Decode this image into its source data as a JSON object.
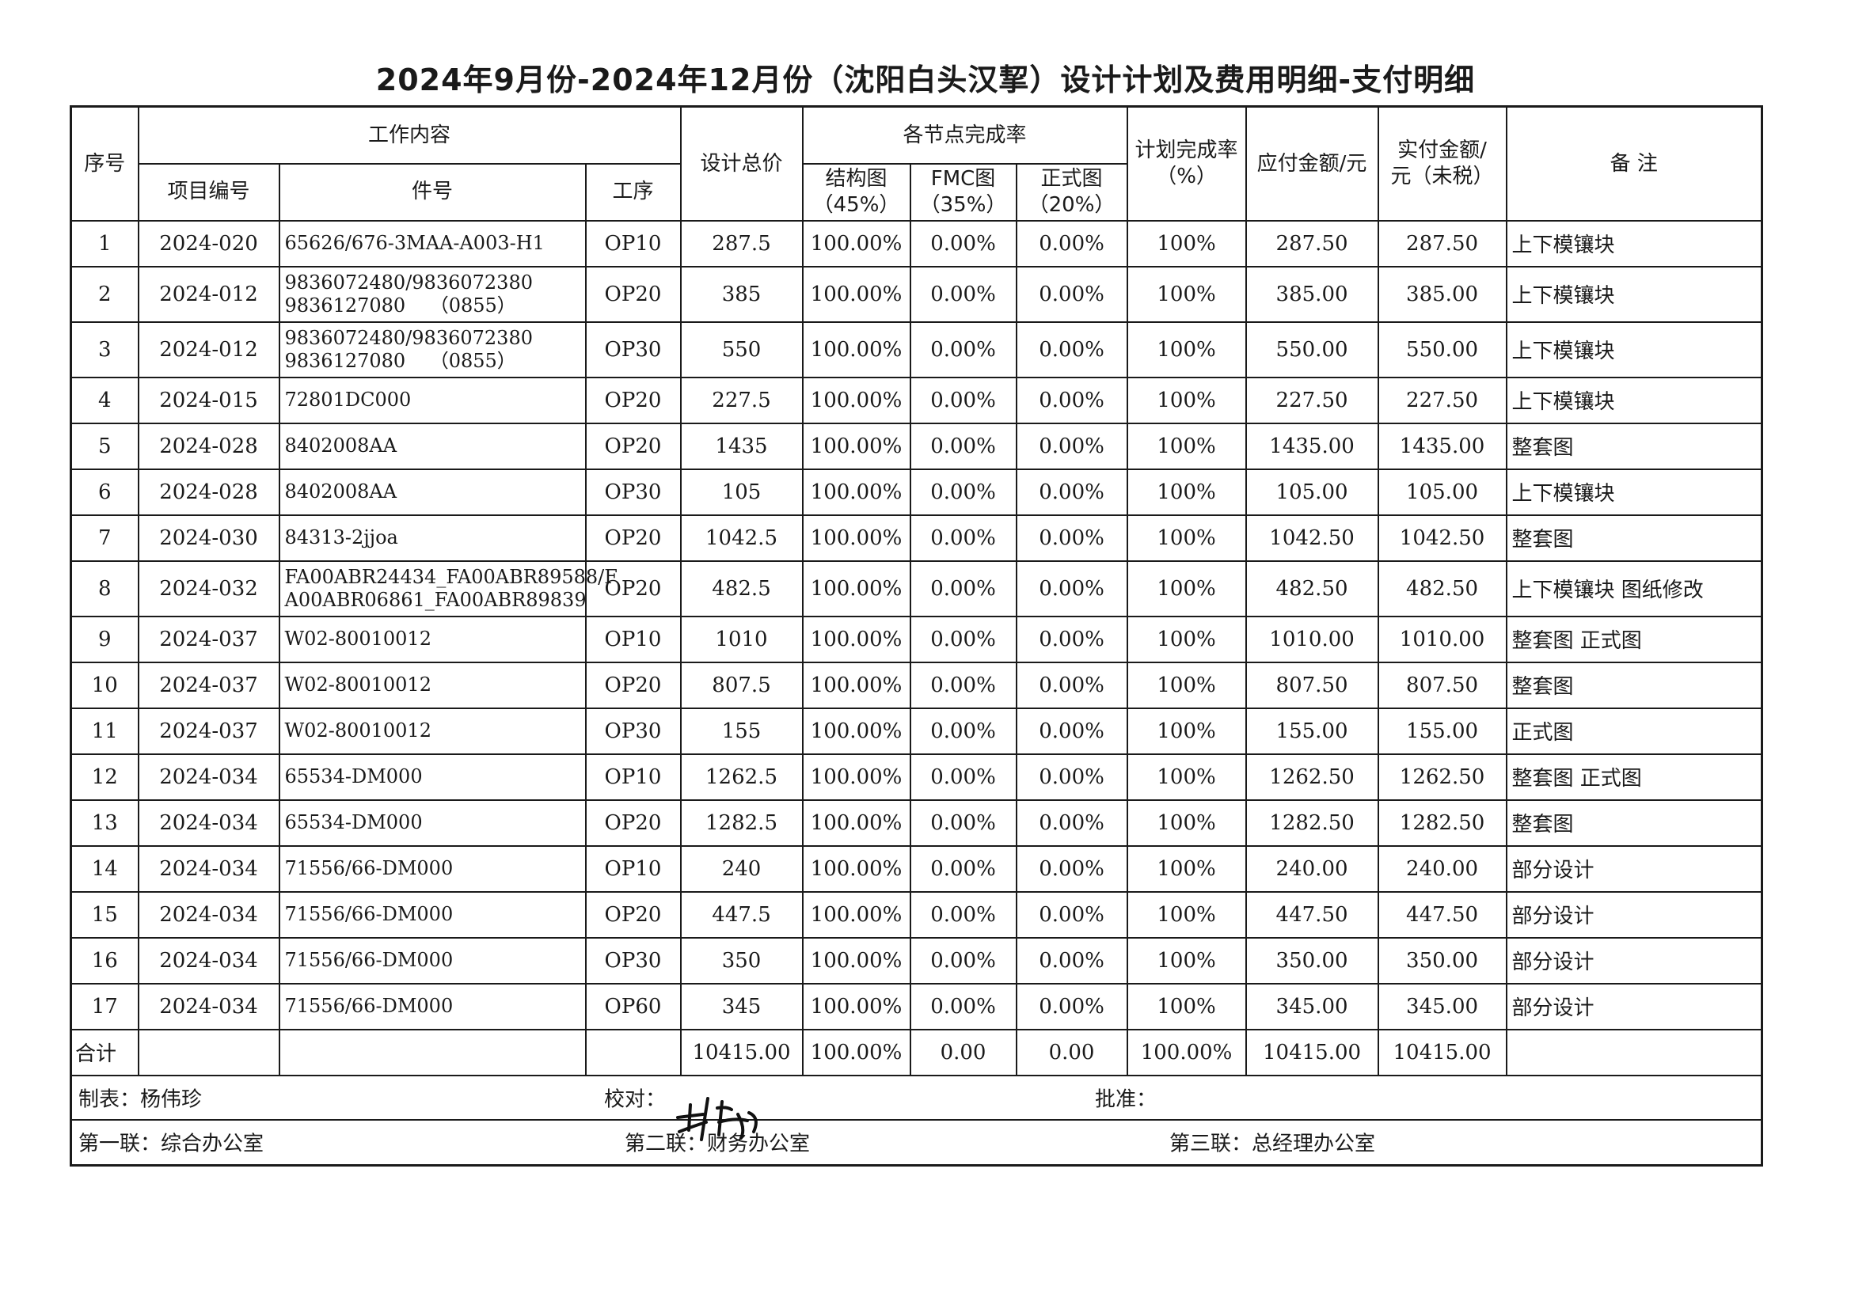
{
  "document": {
    "title": "2024年9月份-2024年12月份（沈阳白头汉挈）设计计划及费用明细-支付明细"
  },
  "table": {
    "headers": {
      "seq": "序号",
      "work_content": "工作内容",
      "project_no": "项目编号",
      "part_no": "件号",
      "process": "工序",
      "design_total": "设计总价",
      "node_completion": "各节点完成率",
      "structure_line1": "结构图",
      "structure_line2": "（45%）",
      "fmc_line1": "FMC图",
      "fmc_line2": "（35%）",
      "formal_line1": "正式图",
      "formal_line2": "（20%）",
      "plan_rate_line1": "计划完成率",
      "plan_rate_line2": "（%）",
      "payable": "应付金额/元",
      "actual_line1": "实付金额/",
      "actual_line2": "元（未税）",
      "remarks": "备  注"
    },
    "rows": [
      {
        "seq": "1",
        "project": "2024-020",
        "part1": "65626/676-3MAA-A003-H1",
        "part2": "",
        "process": "OP10",
        "design_total": "287.5",
        "structure": "100.00%",
        "fmc": "0.00%",
        "formal": "0.00%",
        "plan": "100%",
        "payable": "287.50",
        "actual": "287.50",
        "remark": "上下模镶块"
      },
      {
        "seq": "2",
        "project": "2024-012",
        "part1": "9836072480/9836072380",
        "part2": "9836127080    （0855）",
        "process": "OP20",
        "design_total": "385",
        "structure": "100.00%",
        "fmc": "0.00%",
        "formal": "0.00%",
        "plan": "100%",
        "payable": "385.00",
        "actual": "385.00",
        "remark": "上下模镶块"
      },
      {
        "seq": "3",
        "project": "2024-012",
        "part1": "9836072480/9836072380",
        "part2": "9836127080    （0855）",
        "process": "OP30",
        "design_total": "550",
        "structure": "100.00%",
        "fmc": "0.00%",
        "formal": "0.00%",
        "plan": "100%",
        "payable": "550.00",
        "actual": "550.00",
        "remark": "上下模镶块"
      },
      {
        "seq": "4",
        "project": "2024-015",
        "part1": "72801DC000",
        "part2": "",
        "process": "OP20",
        "design_total": "227.5",
        "structure": "100.00%",
        "fmc": "0.00%",
        "formal": "0.00%",
        "plan": "100%",
        "payable": "227.50",
        "actual": "227.50",
        "remark": "上下模镶块"
      },
      {
        "seq": "5",
        "project": "2024-028",
        "part1": "8402008AA",
        "part2": "",
        "process": "OP20",
        "design_total": "1435",
        "structure": "100.00%",
        "fmc": "0.00%",
        "formal": "0.00%",
        "plan": "100%",
        "payable": "1435.00",
        "actual": "1435.00",
        "remark": "整套图"
      },
      {
        "seq": "6",
        "project": "2024-028",
        "part1": "8402008AA",
        "part2": "",
        "process": "OP30",
        "design_total": "105",
        "structure": "100.00%",
        "fmc": "0.00%",
        "formal": "0.00%",
        "plan": "100%",
        "payable": "105.00",
        "actual": "105.00",
        "remark": "上下模镶块"
      },
      {
        "seq": "7",
        "project": "2024-030",
        "part1": "84313-2jjoa",
        "part2": "",
        "process": "OP20",
        "design_total": "1042.5",
        "structure": "100.00%",
        "fmc": "0.00%",
        "formal": "0.00%",
        "plan": "100%",
        "payable": "1042.50",
        "actual": "1042.50",
        "remark": "整套图"
      },
      {
        "seq": "8",
        "project": "2024-032",
        "part1": "FA00ABR24434_FA00ABR89588/F",
        "part2": "A00ABR06861_FA00ABR89839",
        "process": "OP20",
        "design_total": "482.5",
        "structure": "100.00%",
        "fmc": "0.00%",
        "formal": "0.00%",
        "plan": "100%",
        "payable": "482.50",
        "actual": "482.50",
        "remark": "上下模镶块  图纸修改"
      },
      {
        "seq": "9",
        "project": "2024-037",
        "part1": "W02-80010012",
        "part2": "",
        "process": "OP10",
        "design_total": "1010",
        "structure": "100.00%",
        "fmc": "0.00%",
        "formal": "0.00%",
        "plan": "100%",
        "payable": "1010.00",
        "actual": "1010.00",
        "remark": "整套图    正式图"
      },
      {
        "seq": "10",
        "project": "2024-037",
        "part1": "W02-80010012",
        "part2": "",
        "process": "OP20",
        "design_total": "807.5",
        "structure": "100.00%",
        "fmc": "0.00%",
        "formal": "0.00%",
        "plan": "100%",
        "payable": "807.50",
        "actual": "807.50",
        "remark": "整套图"
      },
      {
        "seq": "11",
        "project": "2024-037",
        "part1": "W02-80010012",
        "part2": "",
        "process": "OP30",
        "design_total": "155",
        "structure": "100.00%",
        "fmc": "0.00%",
        "formal": "0.00%",
        "plan": "100%",
        "payable": "155.00",
        "actual": "155.00",
        "remark": "正式图"
      },
      {
        "seq": "12",
        "project": "2024-034",
        "part1": "65534-DM000",
        "part2": "",
        "process": "OP10",
        "design_total": "1262.5",
        "structure": "100.00%",
        "fmc": "0.00%",
        "formal": "0.00%",
        "plan": "100%",
        "payable": "1262.50",
        "actual": "1262.50",
        "remark": "整套图  正式图"
      },
      {
        "seq": "13",
        "project": "2024-034",
        "part1": "65534-DM000",
        "part2": "",
        "process": "OP20",
        "design_total": "1282.5",
        "structure": "100.00%",
        "fmc": "0.00%",
        "formal": "0.00%",
        "plan": "100%",
        "payable": "1282.50",
        "actual": "1282.50",
        "remark": "整套图"
      },
      {
        "seq": "14",
        "project": "2024-034",
        "part1": "71556/66-DM000",
        "part2": "",
        "process": "OP10",
        "design_total": "240",
        "structure": "100.00%",
        "fmc": "0.00%",
        "formal": "0.00%",
        "plan": "100%",
        "payable": "240.00",
        "actual": "240.00",
        "remark": "部分设计"
      },
      {
        "seq": "15",
        "project": "2024-034",
        "part1": "71556/66-DM000",
        "part2": "",
        "process": "OP20",
        "design_total": "447.5",
        "structure": "100.00%",
        "fmc": "0.00%",
        "formal": "0.00%",
        "plan": "100%",
        "payable": "447.50",
        "actual": "447.50",
        "remark": "部分设计"
      },
      {
        "seq": "16",
        "project": "2024-034",
        "part1": "71556/66-DM000",
        "part2": "",
        "process": "OP30",
        "design_total": "350",
        "structure": "100.00%",
        "fmc": "0.00%",
        "formal": "0.00%",
        "plan": "100%",
        "payable": "350.00",
        "actual": "350.00",
        "remark": "部分设计"
      },
      {
        "seq": "17",
        "project": "2024-034",
        "part1": "71556/66-DM000",
        "part2": "",
        "process": "OP60",
        "design_total": "345",
        "structure": "100.00%",
        "fmc": "0.00%",
        "formal": "0.00%",
        "plan": "100%",
        "payable": "345.00",
        "actual": "345.00",
        "remark": "部分设计"
      }
    ],
    "total": {
      "label": "合计",
      "design_total": "10415.00",
      "structure": "100.00%",
      "fmc": "0.00",
      "formal": "0.00",
      "plan": "100.00%",
      "payable": "10415.00",
      "actual": "10415.00"
    }
  },
  "footer": {
    "prepared_by": "制表：杨伟珍",
    "checked_by": "校对：",
    "approved_by": "批准：",
    "copy1": "第一联：综合办公室",
    "copy2": "第二联：财务办公室",
    "copy3": "第三联：总经理办公室"
  },
  "colors": {
    "ink": "#1a1a1a",
    "paper": "#ffffff"
  }
}
